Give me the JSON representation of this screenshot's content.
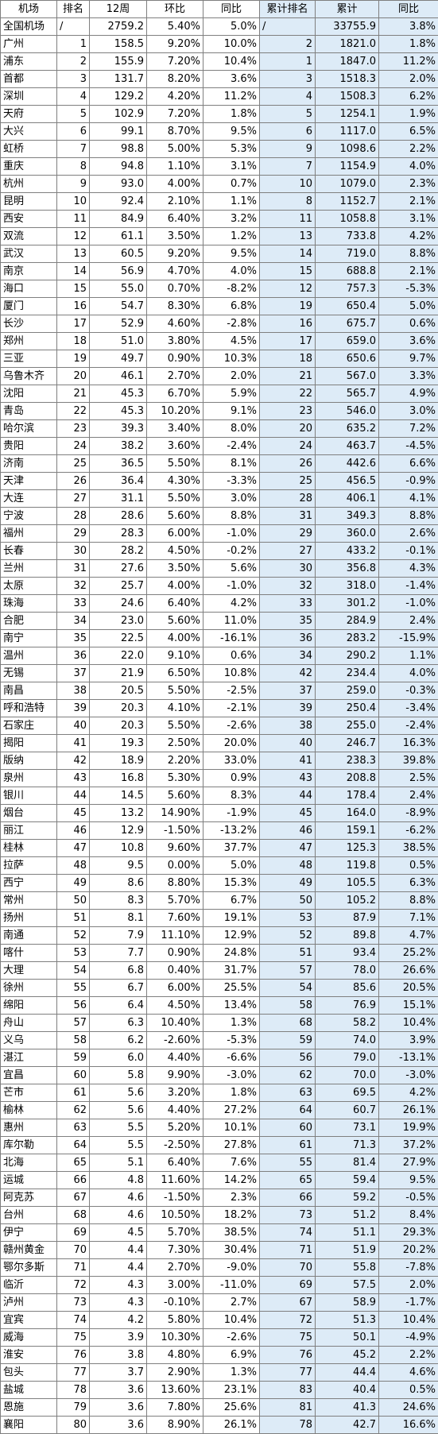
{
  "table": {
    "headers": [
      "机场",
      "排名",
      "12周",
      "环比",
      "同比",
      "累计排名",
      "累计",
      "同比"
    ],
    "rows": [
      [
        "全国机场",
        "/",
        "2759.2",
        "5.40%",
        "5.0%",
        "/",
        "33755.9",
        "3.8%"
      ],
      [
        "广州",
        "1",
        "158.5",
        "9.20%",
        "10.0%",
        "2",
        "1821.0",
        "1.8%"
      ],
      [
        "浦东",
        "2",
        "155.9",
        "7.20%",
        "10.4%",
        "1",
        "1847.0",
        "11.2%"
      ],
      [
        "首都",
        "3",
        "131.7",
        "8.20%",
        "3.6%",
        "3",
        "1518.3",
        "2.0%"
      ],
      [
        "深圳",
        "4",
        "129.2",
        "4.20%",
        "11.2%",
        "4",
        "1508.3",
        "6.2%"
      ],
      [
        "天府",
        "5",
        "102.9",
        "7.20%",
        "1.8%",
        "5",
        "1254.1",
        "1.9%"
      ],
      [
        "大兴",
        "6",
        "99.1",
        "8.70%",
        "9.5%",
        "6",
        "1117.0",
        "6.5%"
      ],
      [
        "虹桥",
        "7",
        "98.8",
        "5.00%",
        "5.3%",
        "9",
        "1098.6",
        "2.2%"
      ],
      [
        "重庆",
        "8",
        "94.8",
        "1.10%",
        "3.1%",
        "7",
        "1154.9",
        "4.0%"
      ],
      [
        "杭州",
        "9",
        "93.0",
        "4.00%",
        "0.7%",
        "10",
        "1079.0",
        "2.3%"
      ],
      [
        "昆明",
        "10",
        "92.4",
        "2.10%",
        "1.1%",
        "8",
        "1152.7",
        "2.1%"
      ],
      [
        "西安",
        "11",
        "84.9",
        "6.40%",
        "3.2%",
        "11",
        "1058.8",
        "3.1%"
      ],
      [
        "双流",
        "12",
        "61.1",
        "3.50%",
        "1.2%",
        "13",
        "733.8",
        "4.2%"
      ],
      [
        "武汉",
        "13",
        "60.5",
        "9.20%",
        "9.5%",
        "14",
        "719.0",
        "8.8%"
      ],
      [
        "南京",
        "14",
        "56.9",
        "4.70%",
        "4.0%",
        "15",
        "688.8",
        "2.1%"
      ],
      [
        "海口",
        "15",
        "55.0",
        "0.70%",
        "-8.2%",
        "12",
        "757.3",
        "-5.3%"
      ],
      [
        "厦门",
        "16",
        "54.7",
        "8.30%",
        "6.8%",
        "19",
        "650.4",
        "5.0%"
      ],
      [
        "长沙",
        "17",
        "52.9",
        "4.60%",
        "-2.8%",
        "16",
        "675.7",
        "0.6%"
      ],
      [
        "郑州",
        "18",
        "51.0",
        "3.80%",
        "4.5%",
        "17",
        "659.0",
        "3.6%"
      ],
      [
        "三亚",
        "19",
        "49.7",
        "0.90%",
        "10.3%",
        "18",
        "650.6",
        "9.7%"
      ],
      [
        "乌鲁木齐",
        "20",
        "46.1",
        "2.70%",
        "2.0%",
        "21",
        "567.0",
        "3.3%"
      ],
      [
        "沈阳",
        "21",
        "45.3",
        "6.70%",
        "5.9%",
        "22",
        "565.7",
        "4.9%"
      ],
      [
        "青岛",
        "22",
        "45.3",
        "10.20%",
        "9.1%",
        "23",
        "546.0",
        "3.0%"
      ],
      [
        "哈尔滨",
        "23",
        "39.3",
        "3.40%",
        "8.0%",
        "20",
        "635.2",
        "7.2%"
      ],
      [
        "贵阳",
        "24",
        "38.2",
        "3.60%",
        "-2.4%",
        "24",
        "463.7",
        "-4.5%"
      ],
      [
        "济南",
        "25",
        "36.5",
        "5.50%",
        "8.1%",
        "26",
        "442.6",
        "6.6%"
      ],
      [
        "天津",
        "26",
        "36.4",
        "4.30%",
        "-3.3%",
        "25",
        "456.5",
        "-0.9%"
      ],
      [
        "大连",
        "27",
        "31.1",
        "5.50%",
        "3.0%",
        "28",
        "406.1",
        "4.1%"
      ],
      [
        "宁波",
        "28",
        "28.6",
        "5.60%",
        "8.8%",
        "31",
        "349.3",
        "8.8%"
      ],
      [
        "福州",
        "29",
        "28.3",
        "6.00%",
        "-1.0%",
        "29",
        "360.0",
        "2.6%"
      ],
      [
        "长春",
        "30",
        "28.2",
        "4.50%",
        "-0.2%",
        "27",
        "433.2",
        "-0.1%"
      ],
      [
        "兰州",
        "31",
        "27.6",
        "3.50%",
        "5.6%",
        "30",
        "356.8",
        "4.3%"
      ],
      [
        "太原",
        "32",
        "25.7",
        "4.00%",
        "-1.0%",
        "32",
        "318.0",
        "-1.4%"
      ],
      [
        "珠海",
        "33",
        "24.6",
        "6.40%",
        "4.2%",
        "33",
        "301.2",
        "-1.0%"
      ],
      [
        "合肥",
        "34",
        "23.0",
        "5.60%",
        "11.0%",
        "35",
        "284.9",
        "2.4%"
      ],
      [
        "南宁",
        "35",
        "22.5",
        "4.00%",
        "-16.1%",
        "36",
        "283.2",
        "-15.9%"
      ],
      [
        "温州",
        "36",
        "22.0",
        "9.10%",
        "0.6%",
        "34",
        "290.2",
        "1.1%"
      ],
      [
        "无锡",
        "37",
        "21.9",
        "6.50%",
        "10.8%",
        "42",
        "234.4",
        "4.0%"
      ],
      [
        "南昌",
        "38",
        "20.5",
        "5.50%",
        "-2.5%",
        "37",
        "259.0",
        "-0.3%"
      ],
      [
        "呼和浩特",
        "39",
        "20.3",
        "4.10%",
        "-2.1%",
        "39",
        "250.4",
        "-3.4%"
      ],
      [
        "石家庄",
        "40",
        "20.3",
        "5.50%",
        "-2.6%",
        "38",
        "255.0",
        "-2.4%"
      ],
      [
        "揭阳",
        "41",
        "19.3",
        "2.50%",
        "20.0%",
        "40",
        "246.7",
        "16.3%"
      ],
      [
        "版纳",
        "42",
        "18.9",
        "2.20%",
        "33.0%",
        "41",
        "238.3",
        "39.8%"
      ],
      [
        "泉州",
        "43",
        "16.8",
        "5.30%",
        "0.9%",
        "43",
        "208.8",
        "2.5%"
      ],
      [
        "银川",
        "44",
        "14.5",
        "5.60%",
        "8.3%",
        "44",
        "178.4",
        "2.4%"
      ],
      [
        "烟台",
        "45",
        "13.2",
        "14.90%",
        "-1.9%",
        "45",
        "164.0",
        "-8.9%"
      ],
      [
        "丽江",
        "46",
        "12.9",
        "-1.50%",
        "-13.2%",
        "46",
        "159.1",
        "-6.2%"
      ],
      [
        "桂林",
        "47",
        "10.8",
        "9.60%",
        "37.7%",
        "47",
        "125.3",
        "38.5%"
      ],
      [
        "拉萨",
        "48",
        "9.5",
        "0.00%",
        "5.0%",
        "48",
        "119.8",
        "0.5%"
      ],
      [
        "西宁",
        "49",
        "8.6",
        "8.80%",
        "15.3%",
        "49",
        "105.5",
        "6.3%"
      ],
      [
        "常州",
        "50",
        "8.3",
        "5.70%",
        "6.7%",
        "50",
        "105.2",
        "8.8%"
      ],
      [
        "扬州",
        "51",
        "8.1",
        "7.60%",
        "19.1%",
        "53",
        "87.9",
        "7.1%"
      ],
      [
        "南通",
        "52",
        "7.9",
        "11.10%",
        "12.9%",
        "52",
        "89.8",
        "4.7%"
      ],
      [
        "喀什",
        "53",
        "7.7",
        "0.90%",
        "24.8%",
        "51",
        "93.4",
        "25.2%"
      ],
      [
        "大理",
        "54",
        "6.8",
        "0.40%",
        "31.7%",
        "57",
        "78.0",
        "26.6%"
      ],
      [
        "徐州",
        "55",
        "6.7",
        "6.00%",
        "25.5%",
        "54",
        "85.6",
        "20.5%"
      ],
      [
        "绵阳",
        "56",
        "6.4",
        "4.50%",
        "13.4%",
        "58",
        "76.9",
        "15.1%"
      ],
      [
        "舟山",
        "57",
        "6.3",
        "10.40%",
        "1.3%",
        "68",
        "58.2",
        "10.4%"
      ],
      [
        "义乌",
        "58",
        "6.2",
        "-2.60%",
        "-5.3%",
        "59",
        "74.0",
        "3.9%"
      ],
      [
        "湛江",
        "59",
        "6.0",
        "4.40%",
        "-6.6%",
        "56",
        "79.0",
        "-13.1%"
      ],
      [
        "宜昌",
        "60",
        "5.8",
        "9.90%",
        "-3.0%",
        "62",
        "70.0",
        "-3.0%"
      ],
      [
        "芒市",
        "61",
        "5.6",
        "3.20%",
        "1.8%",
        "63",
        "69.5",
        "4.2%"
      ],
      [
        "榆林",
        "62",
        "5.6",
        "4.40%",
        "27.2%",
        "64",
        "60.7",
        "26.1%"
      ],
      [
        "惠州",
        "63",
        "5.5",
        "5.20%",
        "10.1%",
        "60",
        "73.1",
        "19.9%"
      ],
      [
        "库尔勒",
        "64",
        "5.5",
        "-2.50%",
        "27.8%",
        "61",
        "71.3",
        "37.2%"
      ],
      [
        "北海",
        "65",
        "5.1",
        "6.40%",
        "7.6%",
        "55",
        "81.4",
        "27.9%"
      ],
      [
        "运城",
        "66",
        "4.8",
        "11.60%",
        "14.2%",
        "65",
        "59.4",
        "9.5%"
      ],
      [
        "阿克苏",
        "67",
        "4.6",
        "-1.50%",
        "2.3%",
        "66",
        "59.2",
        "-0.5%"
      ],
      [
        "台州",
        "68",
        "4.6",
        "10.50%",
        "18.2%",
        "73",
        "51.2",
        "8.4%"
      ],
      [
        "伊宁",
        "69",
        "4.5",
        "5.70%",
        "38.5%",
        "74",
        "51.1",
        "29.3%"
      ],
      [
        "赣州黄金",
        "70",
        "4.4",
        "7.30%",
        "30.4%",
        "71",
        "51.9",
        "20.2%"
      ],
      [
        "鄂尔多斯",
        "71",
        "4.4",
        "2.70%",
        "-9.0%",
        "70",
        "55.8",
        "-7.8%"
      ],
      [
        "临沂",
        "72",
        "4.3",
        "3.00%",
        "-11.0%",
        "69",
        "57.5",
        "2.0%"
      ],
      [
        "泸州",
        "73",
        "4.3",
        "-0.10%",
        "2.7%",
        "67",
        "58.9",
        "-1.7%"
      ],
      [
        "宜宾",
        "74",
        "4.2",
        "5.80%",
        "10.4%",
        "72",
        "51.3",
        "10.4%"
      ],
      [
        "威海",
        "75",
        "3.9",
        "10.30%",
        "-2.6%",
        "75",
        "50.1",
        "-4.9%"
      ],
      [
        "淮安",
        "76",
        "3.8",
        "4.80%",
        "6.9%",
        "76",
        "45.2",
        "2.2%"
      ],
      [
        "包头",
        "77",
        "3.7",
        "2.90%",
        "1.3%",
        "77",
        "44.4",
        "4.6%"
      ],
      [
        "盐城",
        "78",
        "3.6",
        "13.60%",
        "23.1%",
        "83",
        "40.4",
        "0.5%"
      ],
      [
        "恩施",
        "79",
        "3.6",
        "7.80%",
        "25.6%",
        "81",
        "41.3",
        "24.6%"
      ],
      [
        "襄阳",
        "80",
        "3.6",
        "8.90%",
        "26.1%",
        "78",
        "42.7",
        "16.6%"
      ]
    ]
  },
  "colors": {
    "shaded_columns": "#ddebf7",
    "plain_columns": "#ffffff",
    "grid": "#7f7f7f"
  }
}
